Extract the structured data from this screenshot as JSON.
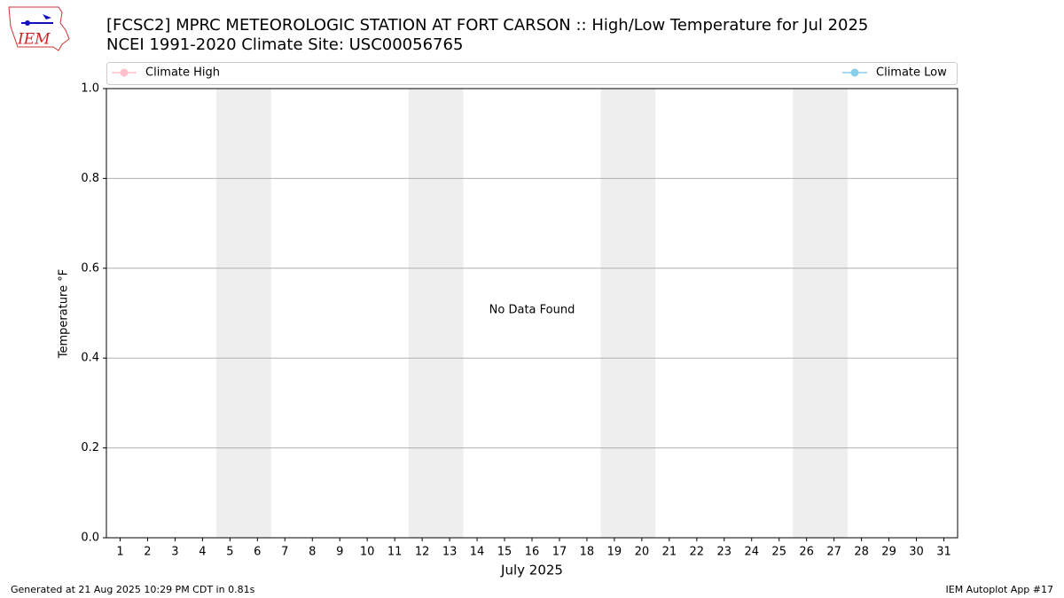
{
  "chart_data": {
    "type": "line",
    "title": "[FCSC2] MPRC METEOROLOGIC STATION AT FORT CARSON :: High/Low Temperature for Jul 2025",
    "subtitle": "NCEI 1991-2020 Climate Site: USC00056765",
    "logo_text": "IEM",
    "xlabel": "July 2025",
    "ylabel": "Temperature °F",
    "annotation": "No Data Found",
    "footer_left": "Generated at 21 Aug 2025 10:29 PM CDT in 0.81s",
    "footer_right": "IEM Autoplot App #17",
    "x": [],
    "series": [
      {
        "name": "Climate High",
        "color": "#ffc0cb",
        "values": []
      },
      {
        "name": "Climate Low",
        "color": "#87ceeb",
        "values": []
      }
    ],
    "shaded_spans": [
      [
        4.5,
        6.5
      ],
      [
        11.5,
        13.5
      ],
      [
        18.5,
        20.5
      ],
      [
        25.5,
        27.5
      ]
    ],
    "xlim": [
      0.5,
      31.5
    ],
    "xticks": [
      1,
      2,
      3,
      4,
      5,
      6,
      7,
      8,
      9,
      10,
      11,
      12,
      13,
      14,
      15,
      16,
      17,
      18,
      19,
      20,
      21,
      22,
      23,
      24,
      25,
      26,
      27,
      28,
      29,
      30,
      31
    ],
    "ylim": [
      0,
      1
    ],
    "yticks": [
      {
        "value": 0,
        "label": "0.0"
      },
      {
        "value": 0.2,
        "label": "0.2"
      },
      {
        "value": 0.4,
        "label": "0.4"
      },
      {
        "value": 0.6,
        "label": "0.6"
      },
      {
        "value": 0.8,
        "label": "0.8"
      },
      {
        "value": 1,
        "label": "1.0"
      }
    ],
    "grid": true,
    "legend": "top"
  }
}
